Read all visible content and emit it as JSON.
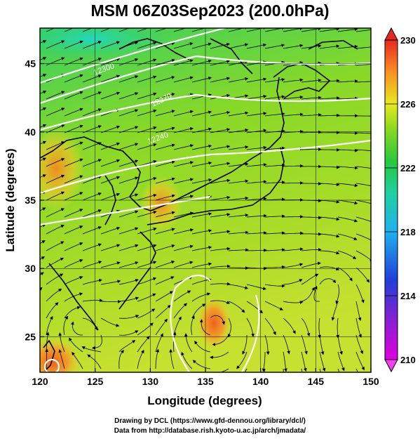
{
  "title": "MSM 06Z03Sep2023 (200.0hPa)",
  "chart_data": {
    "type": "heatmap",
    "xlabel": "Longitude (degrees)",
    "ylabel": "Latitude  (degrees)",
    "xlim": [
      120,
      150
    ],
    "ylim": [
      22.4,
      47.6
    ],
    "x_ticks": [
      "120",
      "125",
      "130",
      "135",
      "140",
      "145",
      "150"
    ],
    "y_ticks": [
      "25",
      "30",
      "35",
      "40",
      "45"
    ],
    "colorbar": {
      "labels": [
        "230",
        "226",
        "222",
        "218",
        "214",
        "210"
      ],
      "range": [
        210,
        230
      ]
    },
    "contour_labels": [
      "12300",
      "12270",
      "12240"
    ],
    "grid": true
  },
  "footer": {
    "line1": "Drawing by DCL (https://www.gfd-dennou.org/library/dcl/)",
    "line2": "Data from http://database.rish.kyoto-u.ac.jp/arch/jmadata/"
  }
}
